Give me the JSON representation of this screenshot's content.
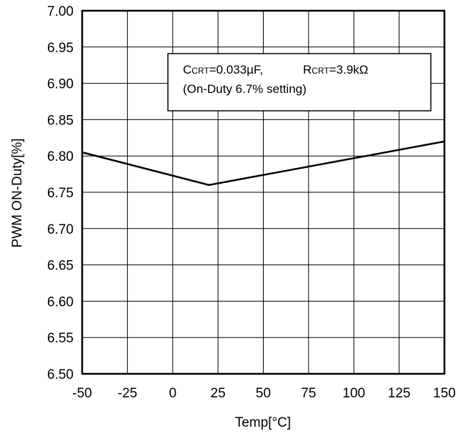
{
  "chart_data": {
    "type": "line",
    "xlabel": "Temp[°C]",
    "ylabel": "PWM ON-Duty[%]",
    "xlim": [
      -50,
      150
    ],
    "ylim": [
      6.5,
      7.0
    ],
    "x_ticks": [
      -50,
      -25,
      0,
      25,
      50,
      75,
      100,
      125,
      150
    ],
    "x_tick_labels": [
      "-50",
      "-25",
      "0",
      "25",
      "50",
      "75",
      "100",
      "125",
      "150"
    ],
    "y_ticks": [
      6.5,
      6.55,
      6.6,
      6.65,
      6.7,
      6.75,
      6.8,
      6.85,
      6.9,
      6.95,
      7.0
    ],
    "y_tick_labels": [
      "6.50",
      "6.55",
      "6.60",
      "6.65",
      "6.70",
      "6.75",
      "6.80",
      "6.85",
      "6.90",
      "6.95",
      "7.00"
    ],
    "grid": true,
    "legend": "none",
    "series": [
      {
        "x": [
          -50,
          20,
          150
        ],
        "y": [
          6.805,
          6.76,
          6.82
        ],
        "color": "#000000"
      }
    ],
    "annotation": {
      "line1_c_main": "C",
      "line1_c_sub": "CRT",
      "line1_c_value": "=0.033µF,",
      "line1_r_main": "R",
      "line1_r_sub": "CRT",
      "line1_r_value": "=3.9kΩ",
      "line2": "(On-Duty 6.7% setting)"
    }
  }
}
